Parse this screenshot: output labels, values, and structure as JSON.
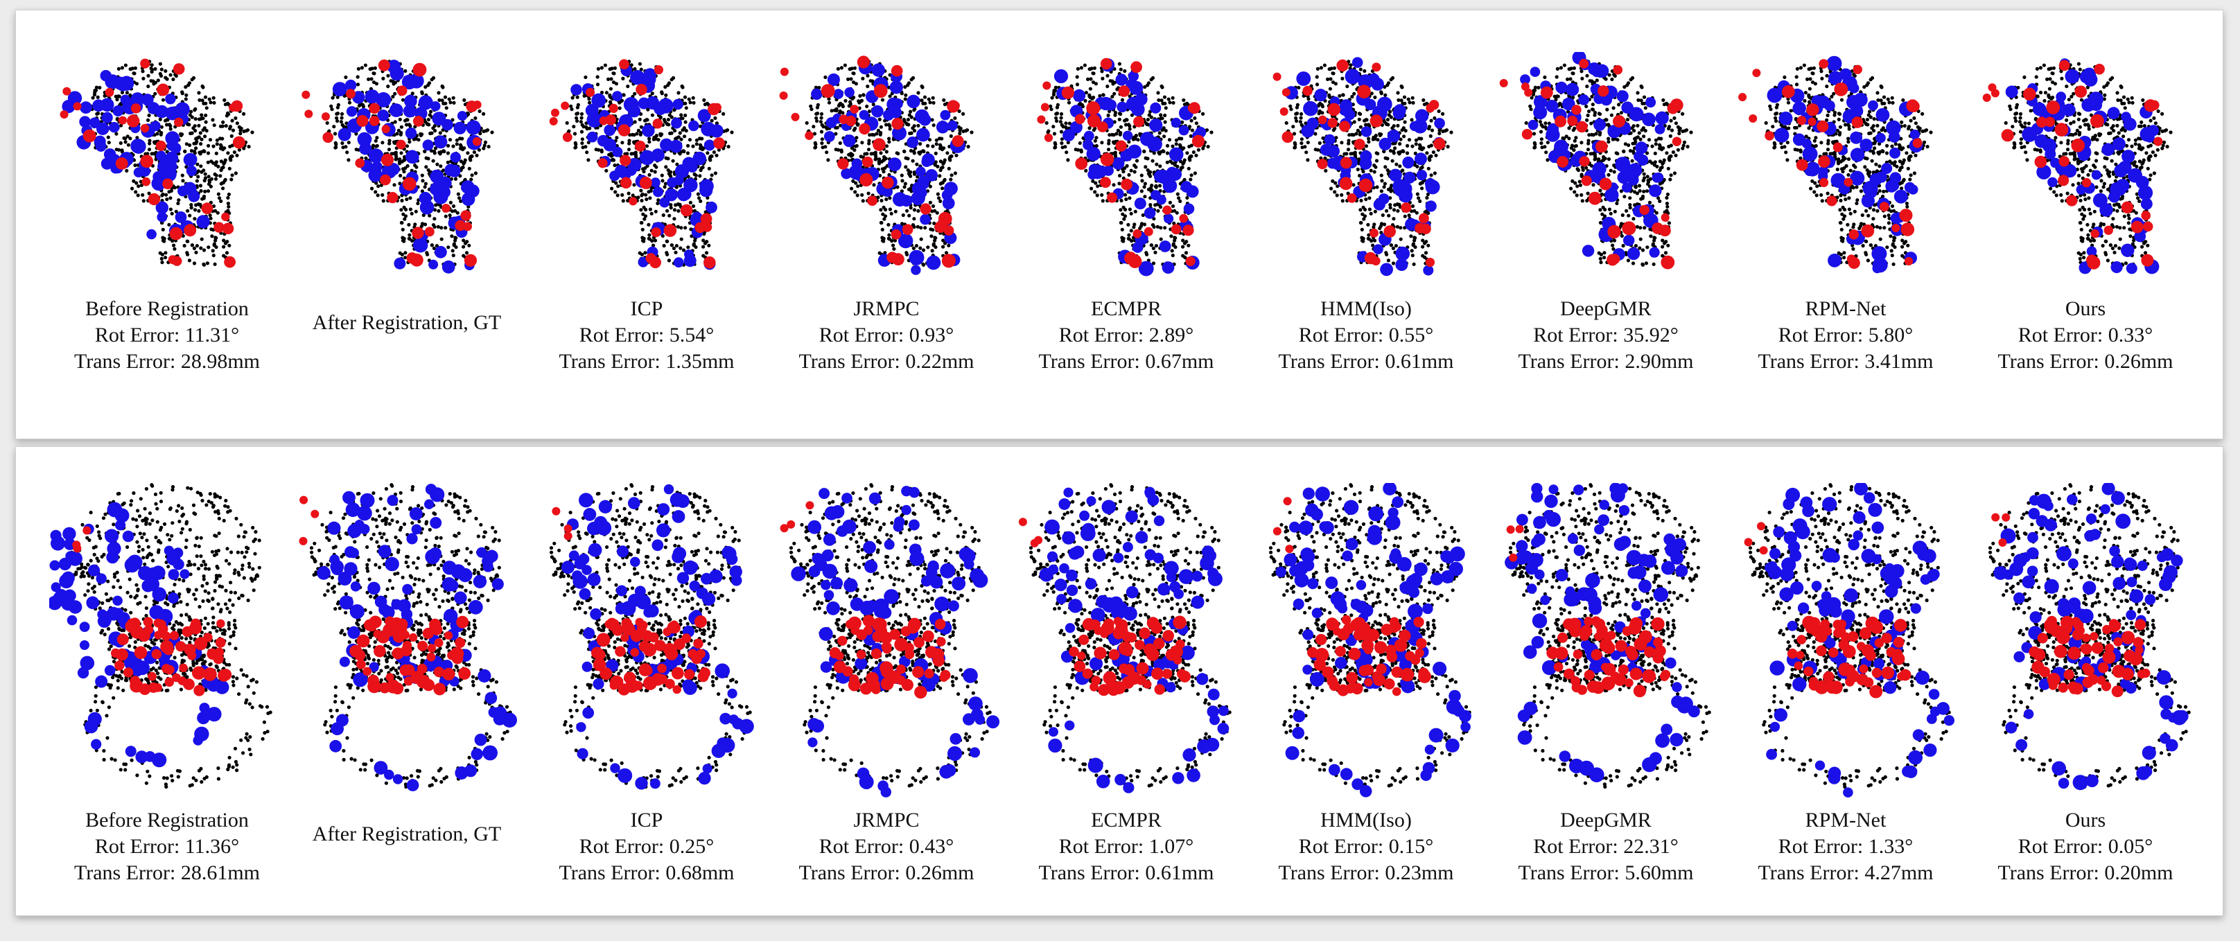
{
  "colors": {
    "source": "#1a10e8",
    "target": "#e81218",
    "model": "#000000",
    "background": "#ffffff"
  },
  "panels": [
    {
      "shape": "femur",
      "items": [
        {
          "method": "Before Registration",
          "rot": "Rot Error:  11.31°",
          "trans": "Trans Error: 28.98mm",
          "state": "before"
        },
        {
          "method": "After Registration, GT",
          "rot": "",
          "trans": "",
          "state": "gt"
        },
        {
          "method": "ICP",
          "rot": "Rot Error:  5.54°",
          "trans": "Trans Error: 1.35mm",
          "state": "near"
        },
        {
          "method": "JRMPC",
          "rot": "Rot Error:  0.93°",
          "trans": "Trans Error: 0.22mm",
          "state": "near"
        },
        {
          "method": "ECMPR",
          "rot": "Rot Error:  2.89°",
          "trans": "Trans Error: 0.67mm",
          "state": "near"
        },
        {
          "method": "HMM(Iso)",
          "rot": "Rot Error:  0.55°",
          "trans": "Trans Error: 0.61mm",
          "state": "near"
        },
        {
          "method": "DeepGMR",
          "rot": "Rot Error:  35.92°",
          "trans": "Trans Error: 2.90mm",
          "state": "off"
        },
        {
          "method": "RPM-Net",
          "rot": "Rot Error: 5.80°",
          "trans": "Trans Error: 3.41mm",
          "state": "near"
        },
        {
          "method": "Ours",
          "rot": "Rot Error: 0.33°",
          "trans": "Trans Error: 0.26mm",
          "state": "near"
        }
      ]
    },
    {
      "shape": "hip",
      "items": [
        {
          "method": "Before Registration",
          "rot": "Rot Error:  11.36°",
          "trans": "Trans Error: 28.61mm",
          "state": "before"
        },
        {
          "method": "After Registration, GT",
          "rot": "",
          "trans": "",
          "state": "gt"
        },
        {
          "method": "ICP",
          "rot": "Rot Error:  0.25°",
          "trans": "Trans Error: 0.68mm",
          "state": "near"
        },
        {
          "method": "JRMPC",
          "rot": "Rot Error:  0.43°",
          "trans": "Trans Error: 0.26mm",
          "state": "near"
        },
        {
          "method": "ECMPR",
          "rot": "Rot Error:  1.07°",
          "trans": "Trans Error: 0.61mm",
          "state": "near"
        },
        {
          "method": "HMM(Iso)",
          "rot": "Rot Error:  0.15°",
          "trans": "Trans Error: 0.23mm",
          "state": "near"
        },
        {
          "method": "DeepGMR",
          "rot": "Rot Error:  22.31°",
          "trans": "Trans Error: 5.60mm",
          "state": "off"
        },
        {
          "method": "RPM-Net",
          "rot": "Rot Error: 1.33°",
          "trans": "Trans Error: 4.27mm",
          "state": "near"
        },
        {
          "method": "Ours",
          "rot": "Rot Error: 0.05°",
          "trans": "Trans Error: 0.20mm",
          "state": "near"
        }
      ]
    }
  ]
}
